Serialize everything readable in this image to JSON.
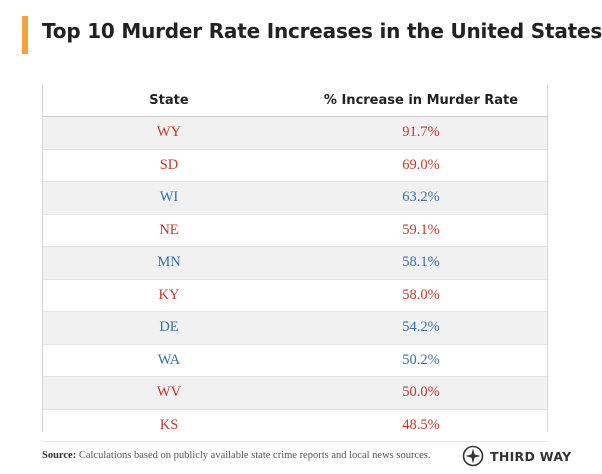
{
  "header": {
    "title": "Top 10 Murder Rate Increases in the United States"
  },
  "colors": {
    "accent": "#f2a33a",
    "republican": "#c0392b",
    "democrat": "#3a6ea5"
  },
  "chart_data": {
    "type": "table",
    "title": "Top 10 Murder Rate Increases in the United States",
    "columns": [
      "State",
      "% Increase in Murder Rate"
    ],
    "rows": [
      {
        "state": "WY",
        "value": "91.7%",
        "party": "republican"
      },
      {
        "state": "SD",
        "value": "69.0%",
        "party": "republican"
      },
      {
        "state": "WI",
        "value": "63.2%",
        "party": "democrat"
      },
      {
        "state": "NE",
        "value": "59.1%",
        "party": "republican"
      },
      {
        "state": "MN",
        "value": "58.1%",
        "party": "democrat"
      },
      {
        "state": "KY",
        "value": "58.0%",
        "party": "republican"
      },
      {
        "state": "DE",
        "value": "54.2%",
        "party": "democrat"
      },
      {
        "state": "WA",
        "value": "50.2%",
        "party": "democrat"
      },
      {
        "state": "WV",
        "value": "50.0%",
        "party": "republican"
      },
      {
        "state": "KS",
        "value": "48.5%",
        "party": "republican"
      }
    ]
  },
  "footer": {
    "source_label": "Source:",
    "source_text": "Calculations based on publicly available state crime reports and local news sources.",
    "logo_icon": "compass-icon",
    "logo_text": "THIRD WAY"
  }
}
